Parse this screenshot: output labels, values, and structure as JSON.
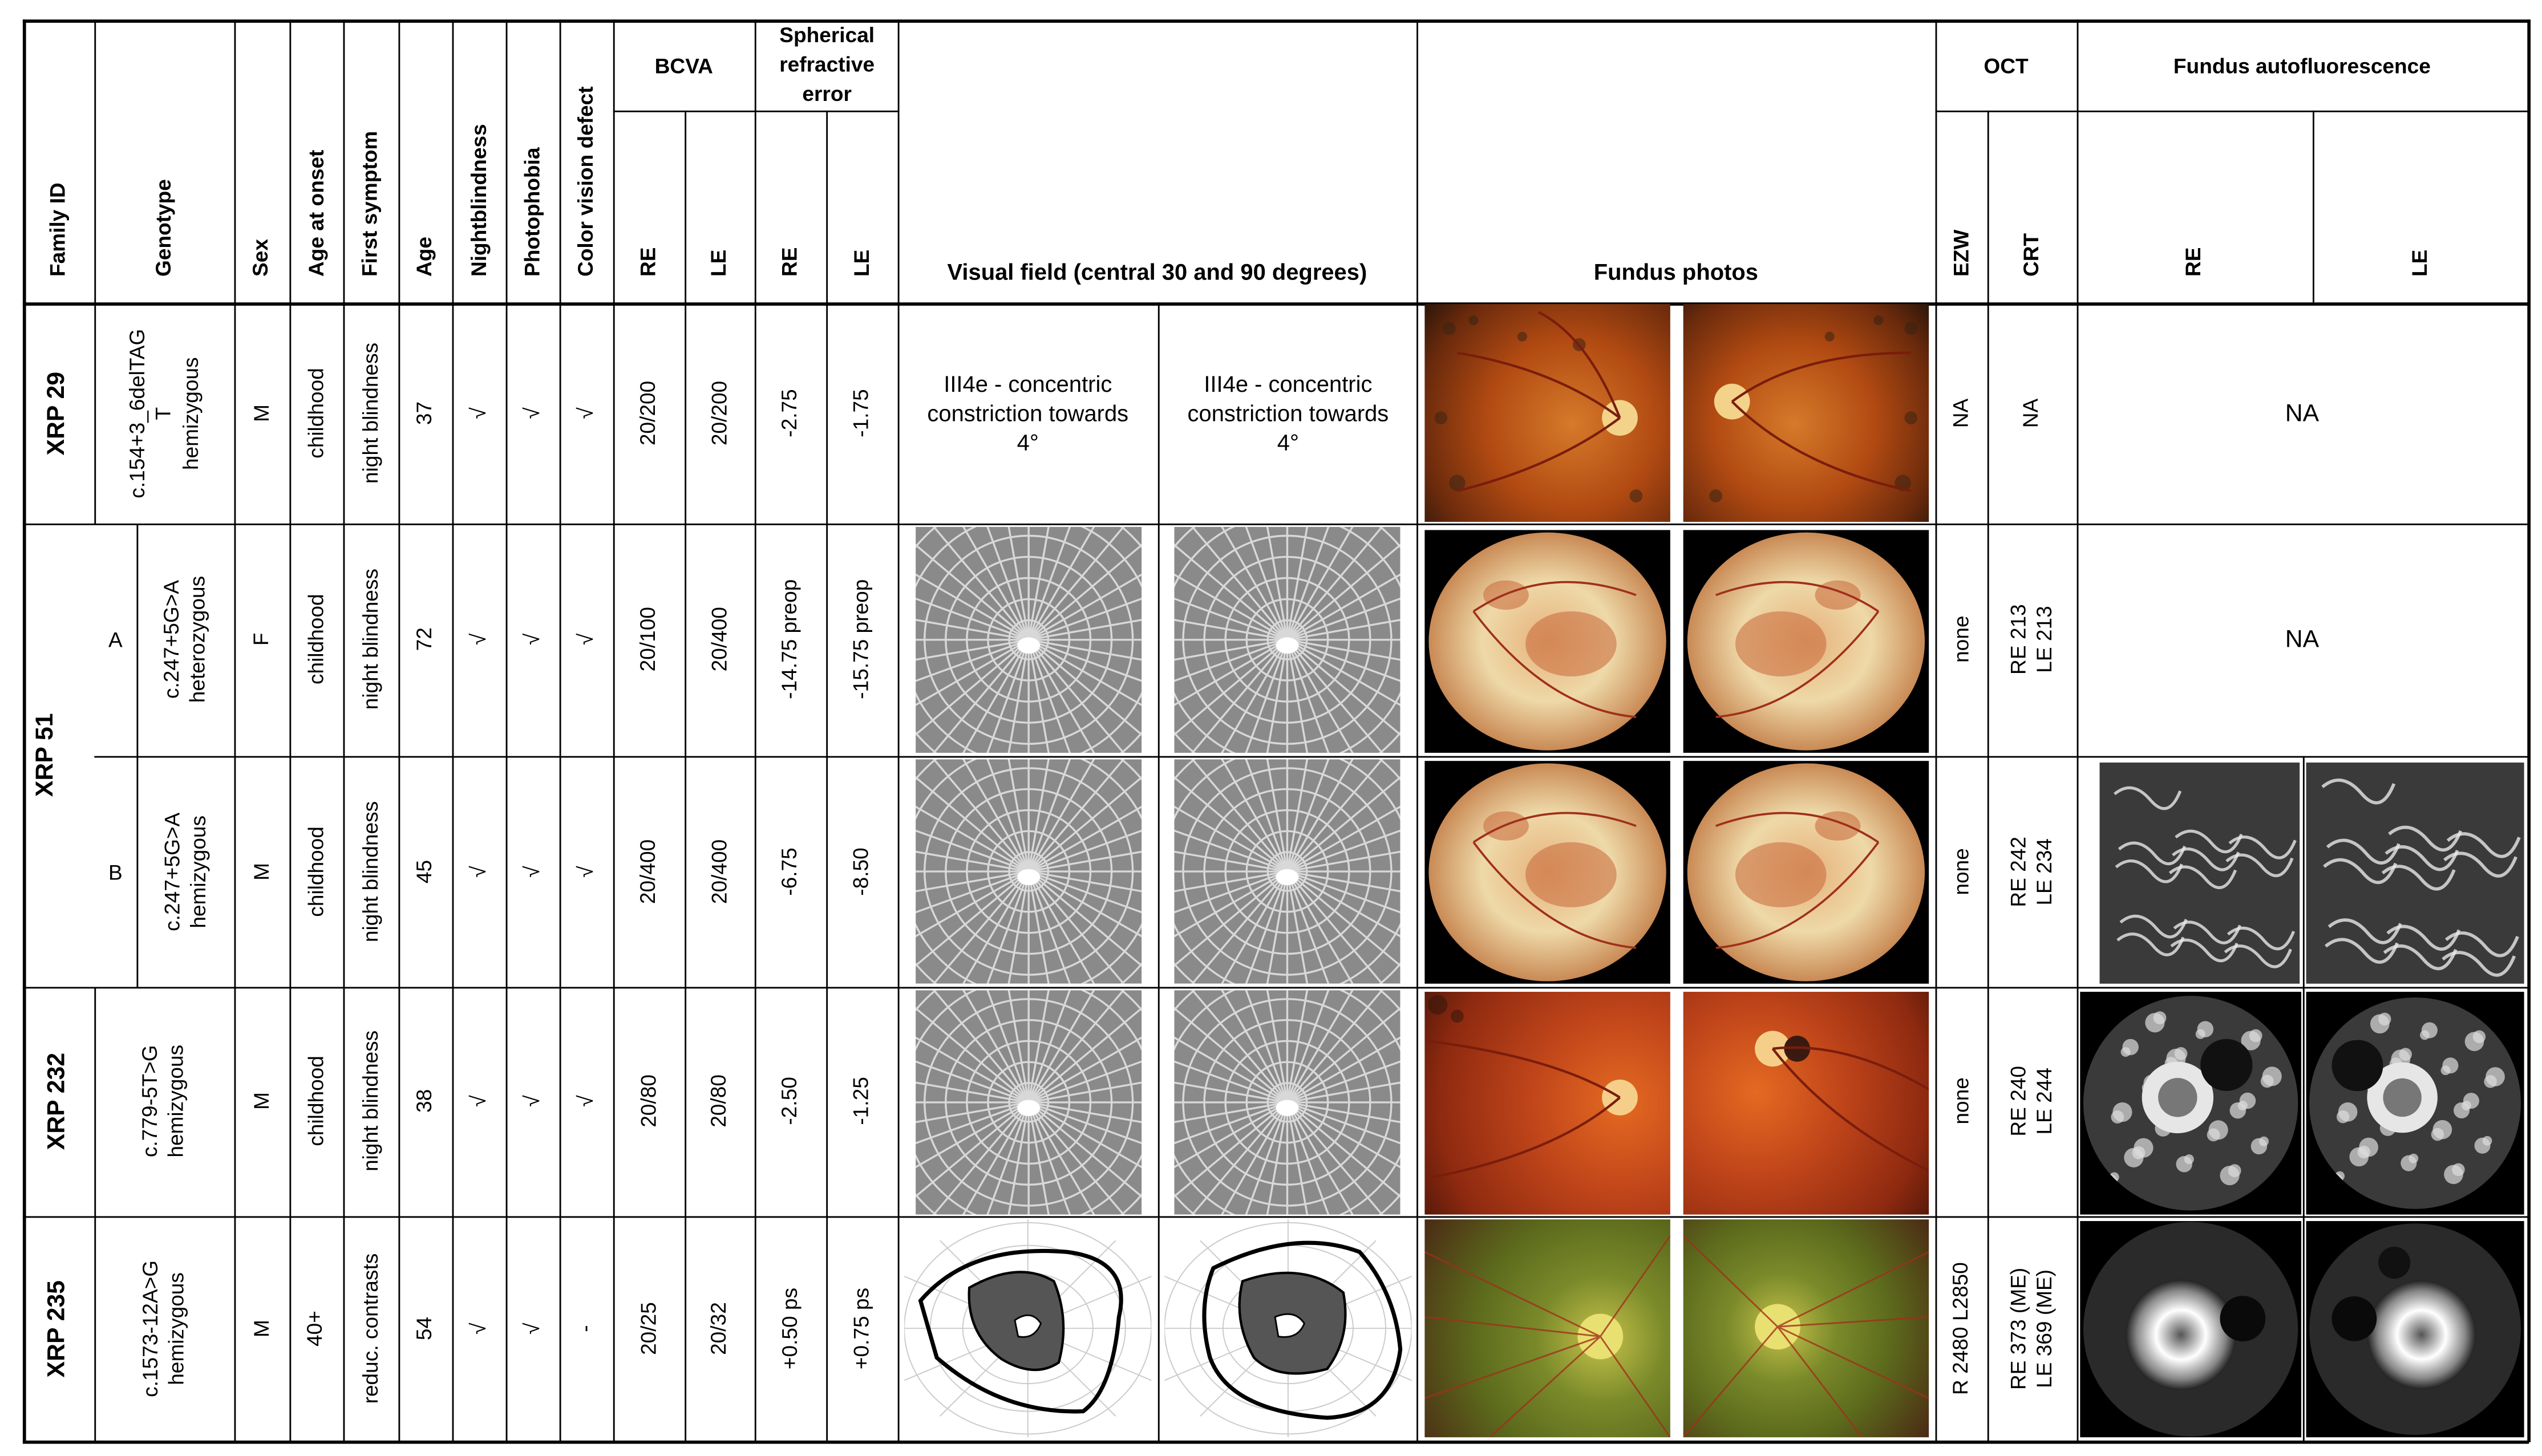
{
  "headers": {
    "family_id": "Family ID",
    "genotype": "Genotype",
    "sex": "Sex",
    "age_at_onset": "Age at onset",
    "first_symptom": "First symptom",
    "age": "Age",
    "nightblindness": "Nightblindness",
    "photophobia": "Photophobia",
    "color_vision_defect": "Color vision defect",
    "bcva": "BCVA",
    "bcva_re": "RE",
    "bcva_le": "LE",
    "spherical": "Spherical refractive error",
    "sph_re": "RE",
    "sph_le": "LE",
    "visual_field": "Visual field (central 30 and 90 degrees)",
    "fundus_photos": "Fundus photos",
    "oct": "OCT",
    "ezw": "EZW",
    "crt": "CRT",
    "faf": "Fundus autofluorescence",
    "faf_re": "RE",
    "faf_le": "LE"
  },
  "rows": [
    {
      "family_id": "XRP 29",
      "sub": "",
      "genotype": [
        "c.154+3_6delTAG",
        "T",
        "hemizygous"
      ],
      "sex": "M",
      "onset": "childhood",
      "symptom": "night blindness",
      "age": "37",
      "nb": "√",
      "ph": "√",
      "cvd": "√",
      "bcva_re": "20/200",
      "bcva_le": "20/200",
      "sph_re": "-2.75",
      "sph_le": "-1.75",
      "vf_re": "III4e -  concentric constriction towards  4°",
      "vf_le": "III4e -  concentric constriction towards  4°",
      "ezw": "NA",
      "crt": [
        "NA"
      ],
      "faf": "NA"
    },
    {
      "family_id": "XRP 51",
      "sub": "A",
      "genotype": [
        "c.247+5G>A",
        "heterozygous"
      ],
      "sex": "F",
      "onset": "childhood",
      "symptom": "night blindness",
      "age": "72",
      "nb": "√",
      "ph": "√",
      "cvd": "√",
      "bcva_re": "20/100",
      "bcva_le": "20/400",
      "sph_re": "-14.75 preop",
      "sph_le": "-15.75 preop",
      "ezw": "none",
      "crt": [
        "RE 213",
        "LE 213"
      ],
      "faf": "NA"
    },
    {
      "family_id": "XRP 51",
      "sub": "B",
      "genotype": [
        "c.247+5G>A",
        "hemizygous"
      ],
      "sex": "M",
      "onset": "childhood",
      "symptom": "night blindness",
      "age": "45",
      "nb": "√",
      "ph": "√",
      "cvd": "√",
      "bcva_re": "20/400",
      "bcva_le": "20/400",
      "sph_re": "-6.75",
      "sph_le": "-8.50",
      "ezw": "none",
      "crt": [
        "RE 242",
        "LE 234"
      ]
    },
    {
      "family_id": "XRP 232",
      "sub": "",
      "genotype": [
        "c.779-5T>G",
        "hemizygous"
      ],
      "sex": "M",
      "onset": "childhood",
      "symptom": "night blindness",
      "age": "38",
      "nb": "√",
      "ph": "√",
      "cvd": "√",
      "bcva_re": "20/80",
      "bcva_le": "20/80",
      "sph_re": "-2.50",
      "sph_le": "-1.25",
      "ezw": "none",
      "crt": [
        "RE 240",
        "LE 244"
      ]
    },
    {
      "family_id": "XRP 235",
      "sub": "",
      "genotype": [
        "c.1573-12A>G",
        "hemizygous"
      ],
      "sex": "M",
      "onset": "40+",
      "symptom": "reduc. contrasts",
      "age": "54",
      "nb": "√",
      "ph": "√",
      "cvd": "-",
      "bcva_re": "20/25",
      "bcva_le": "20/32",
      "sph_re": "+0.50 ps",
      "sph_le": "+0.75 ps",
      "ezw": "R 2480 L2850",
      "crt": [
        "RE 373 (ME)",
        "LE 369 (ME)"
      ]
    }
  ]
}
